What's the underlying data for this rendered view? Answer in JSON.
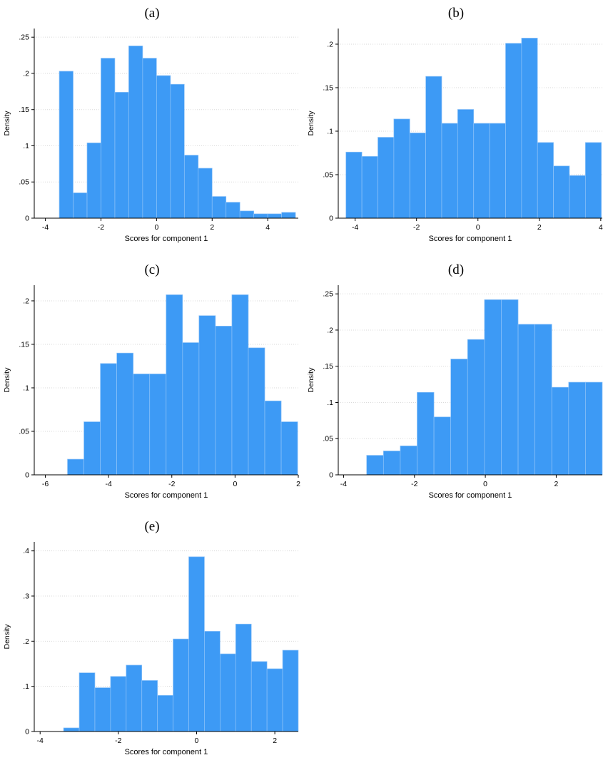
{
  "style": {
    "bar_color": "#3D9AF5",
    "bar_edge_color": "#8FC3F8",
    "grid_color": "#DADADA",
    "axis_color": "#000000",
    "text_color": "#000000",
    "background": "#FFFFFF"
  },
  "chart_data": [
    {
      "id": "a",
      "type": "bar",
      "title": "(a)",
      "xlabel": "Scores for component 1",
      "ylabel": "Density",
      "xlim": [
        -4.4,
        5.1
      ],
      "ylim": [
        0,
        0.262
      ],
      "xticks": [
        -4,
        -2,
        0,
        2,
        4
      ],
      "yticks": [
        0,
        0.05,
        0.1,
        0.15,
        0.2,
        0.25
      ],
      "ytick_labels": [
        "0",
        ".05",
        ".1",
        ".15",
        ".2",
        ".25"
      ],
      "grid": true,
      "legend": "none",
      "bin_start": -3.5,
      "bin_width": 0.5,
      "values": [
        0.203,
        0.035,
        0.104,
        0.221,
        0.174,
        0.238,
        0.221,
        0.197,
        0.185,
        0.087,
        0.069,
        0.03,
        0.022,
        0.01,
        0.006,
        0.006,
        0.008
      ]
    },
    {
      "id": "b",
      "type": "bar",
      "title": "(b)",
      "xlabel": "Scores for component 1",
      "ylabel": "Density",
      "xlim": [
        -4.55,
        4.05
      ],
      "ylim": [
        0,
        0.218
      ],
      "xticks": [
        -4,
        -2,
        0,
        2,
        4
      ],
      "yticks": [
        0,
        0.05,
        0.1,
        0.15,
        0.2
      ],
      "ytick_labels": [
        "0",
        ".05",
        ".1",
        ".15",
        ".2"
      ],
      "grid": true,
      "legend": "none",
      "bin_start": -4.3,
      "bin_width": 0.52,
      "values": [
        0.076,
        0.071,
        0.093,
        0.114,
        0.098,
        0.163,
        0.109,
        0.125,
        0.109,
        0.109,
        0.201,
        0.207,
        0.087,
        0.06,
        0.049,
        0.087
      ]
    },
    {
      "id": "c",
      "type": "bar",
      "title": "(c)",
      "xlabel": "Scores for component 1",
      "ylabel": "Density",
      "xlim": [
        -6.35,
        2.0
      ],
      "ylim": [
        0,
        0.218
      ],
      "xticks": [
        -6,
        -4,
        -2,
        0,
        2
      ],
      "yticks": [
        0,
        0.05,
        0.1,
        0.15,
        0.2
      ],
      "ytick_labels": [
        "0",
        ".05",
        ".1",
        ".15",
        ".2"
      ],
      "grid": true,
      "legend": "none",
      "bin_start": -5.3,
      "bin_width": 0.52,
      "values": [
        0.018,
        0.061,
        0.128,
        0.14,
        0.116,
        0.116,
        0.207,
        0.152,
        0.183,
        0.171,
        0.207,
        0.146,
        0.085,
        0.061
      ]
    },
    {
      "id": "d",
      "type": "bar",
      "title": "(d)",
      "xlabel": "Scores for component 1",
      "ylabel": "Density",
      "xlim": [
        -4.15,
        3.3
      ],
      "ylim": [
        0,
        0.262
      ],
      "xticks": [
        -4,
        -2,
        0,
        2
      ],
      "yticks": [
        0,
        0.05,
        0.1,
        0.15,
        0.2,
        0.25
      ],
      "ytick_labels": [
        "0",
        ".05",
        ".1",
        ".15",
        ".2",
        ".25"
      ],
      "grid": true,
      "legend": "none",
      "bin_start": -3.35,
      "bin_width": 0.475,
      "values": [
        0.027,
        0.033,
        0.04,
        0.114,
        0.08,
        0.16,
        0.187,
        0.242,
        0.242,
        0.208,
        0.208,
        0.121,
        0.128,
        0.128
      ]
    },
    {
      "id": "e",
      "type": "bar",
      "title": "(e)",
      "xlabel": "Scores for component 1",
      "ylabel": "Density",
      "xlim": [
        -4.15,
        2.6
      ],
      "ylim": [
        0,
        0.42
      ],
      "xticks": [
        -4,
        -2,
        0,
        2
      ],
      "yticks": [
        0,
        0.1,
        0.2,
        0.3,
        0.4
      ],
      "ytick_labels": [
        "0",
        ".1",
        ".2",
        ".3",
        ".4"
      ],
      "grid": true,
      "legend": "none",
      "bin_start": -3.4,
      "bin_width": 0.4,
      "values": [
        0.008,
        0.13,
        0.097,
        0.122,
        0.147,
        0.113,
        0.08,
        0.205,
        0.387,
        0.222,
        0.172,
        0.238,
        0.155,
        0.139,
        0.18
      ]
    }
  ]
}
